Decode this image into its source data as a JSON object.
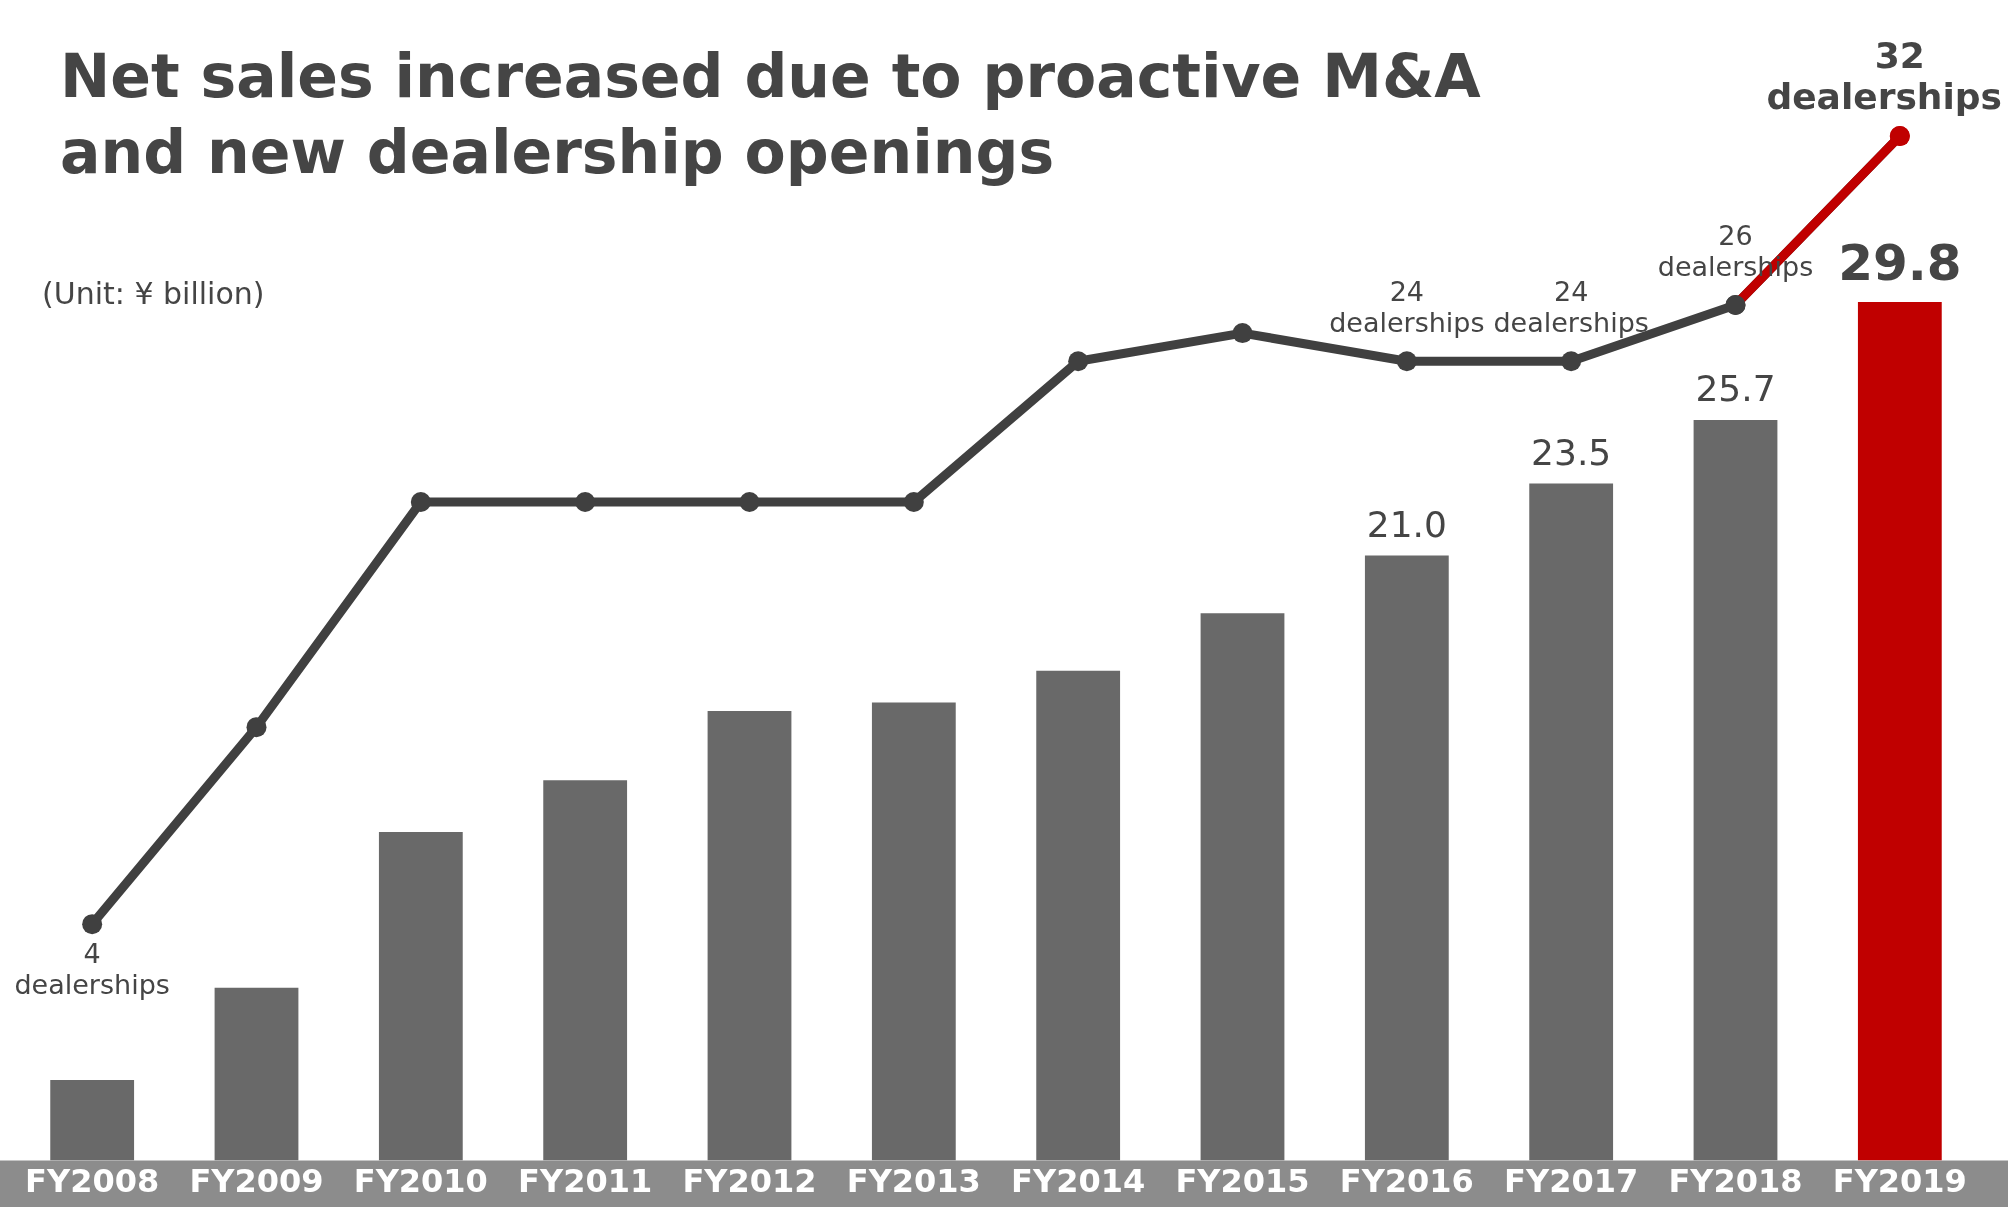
{
  "chart_data": {
    "type": "bar",
    "title": "Net sales increased due to proactive M&A and new dealership openings",
    "annotations": [
      "(Unit: ¥ billion)"
    ],
    "categories": [
      "FY2008",
      "FY2009",
      "FY2010",
      "FY2011",
      "FY2012",
      "FY2013",
      "FY2014",
      "FY2015",
      "FY2016",
      "FY2017",
      "FY2018",
      "FY2019"
    ],
    "series": [
      {
        "color": "#696969",
        "colors": [
          null,
          null,
          null,
          null,
          null,
          null,
          null,
          null,
          null,
          null,
          null,
          "#c00000"
        ],
        "values": [
          2.8,
          6.0,
          11.4,
          13.2,
          15.6,
          15.9,
          17.0,
          19.0,
          21.0,
          23.5,
          25.7,
          29.8
        ],
        "value_labels": [
          null,
          null,
          null,
          null,
          null,
          null,
          null,
          null,
          "21.0",
          "23.5",
          "25.7",
          "29.8"
        ]
      },
      {
        "type": "line",
        "axis": "y2",
        "color": "#404040",
        "colors": [
          null,
          null,
          null,
          null,
          null,
          null,
          null,
          null,
          null,
          null,
          null,
          "#c00000"
        ],
        "values": [
          4,
          11,
          19,
          19,
          19,
          19,
          24,
          25,
          24,
          24,
          26,
          32
        ],
        "value_labels": [
          "4 dealerships",
          null,
          null,
          null,
          null,
          null,
          null,
          null,
          "24 dealerships",
          "24 dealerships",
          "26 dealerships",
          "32 dealerships"
        ]
      }
    ],
    "tick_labels": "x",
    "grid": false,
    "legend": false,
    "marker": "circle",
    "line_style": "solid"
  }
}
